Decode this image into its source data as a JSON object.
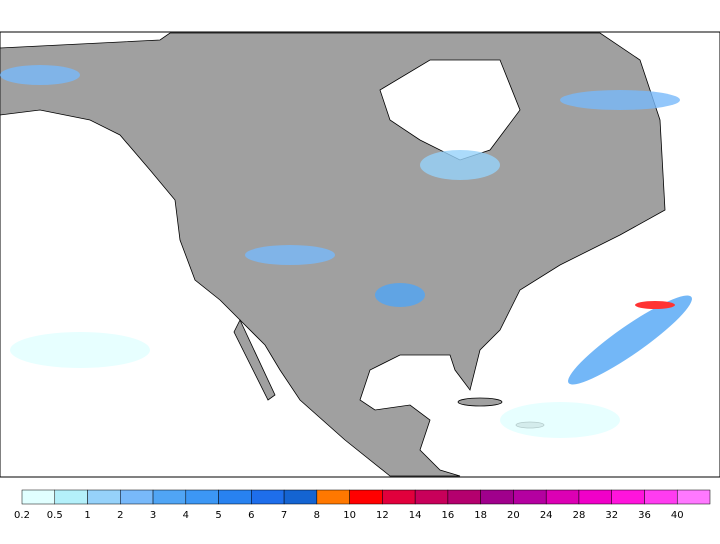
{
  "colorbar": {
    "ticks": [
      0.2,
      0.5,
      1,
      2,
      3,
      4,
      5,
      6,
      7,
      8,
      10,
      12,
      14,
      16,
      18,
      20,
      24,
      28,
      32,
      36,
      40
    ],
    "colors": [
      "#e1ffff",
      "#b4f0fa",
      "#96d2fa",
      "#78b9fa",
      "#50a5f5",
      "#3c97f5",
      "#2882f0",
      "#1e6eeb",
      "#1464d2",
      "#ff7800",
      "#ff0000",
      "#e1003c",
      "#c8005a",
      "#b4006e",
      "#a0008c",
      "#b400a0",
      "#dc00b4",
      "#f000c8",
      "#ff14dc",
      "#ff3cf0",
      "#ff78ff"
    ]
  }
}
